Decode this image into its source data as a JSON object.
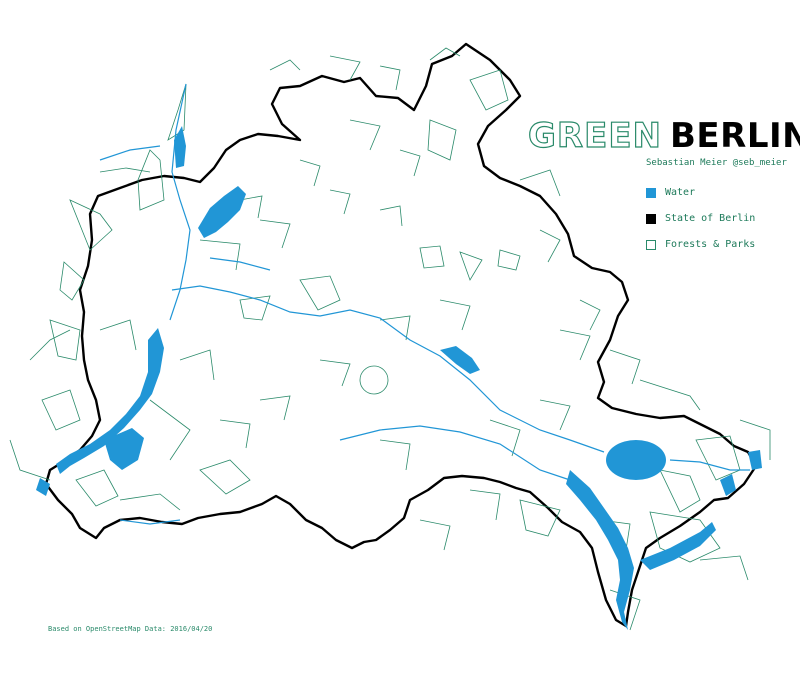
{
  "title": {
    "part1": "GREEN",
    "part2": "BERLIN"
  },
  "subtitle": "Sebastian Meier @seb_meier",
  "legend": [
    {
      "label": "Water",
      "color": "#2196d6",
      "style": "fill"
    },
    {
      "label": "State of Berlin",
      "color": "#000000",
      "style": "fill"
    },
    {
      "label": "Forests & Parks",
      "color": "#2a8a6a",
      "style": "outline"
    }
  ],
  "source": "Based on OpenStreetMap Data: 2016/04/20",
  "colors": {
    "water": "#2196d6",
    "boundary": "#000000",
    "forest": "#2a8a6a"
  }
}
